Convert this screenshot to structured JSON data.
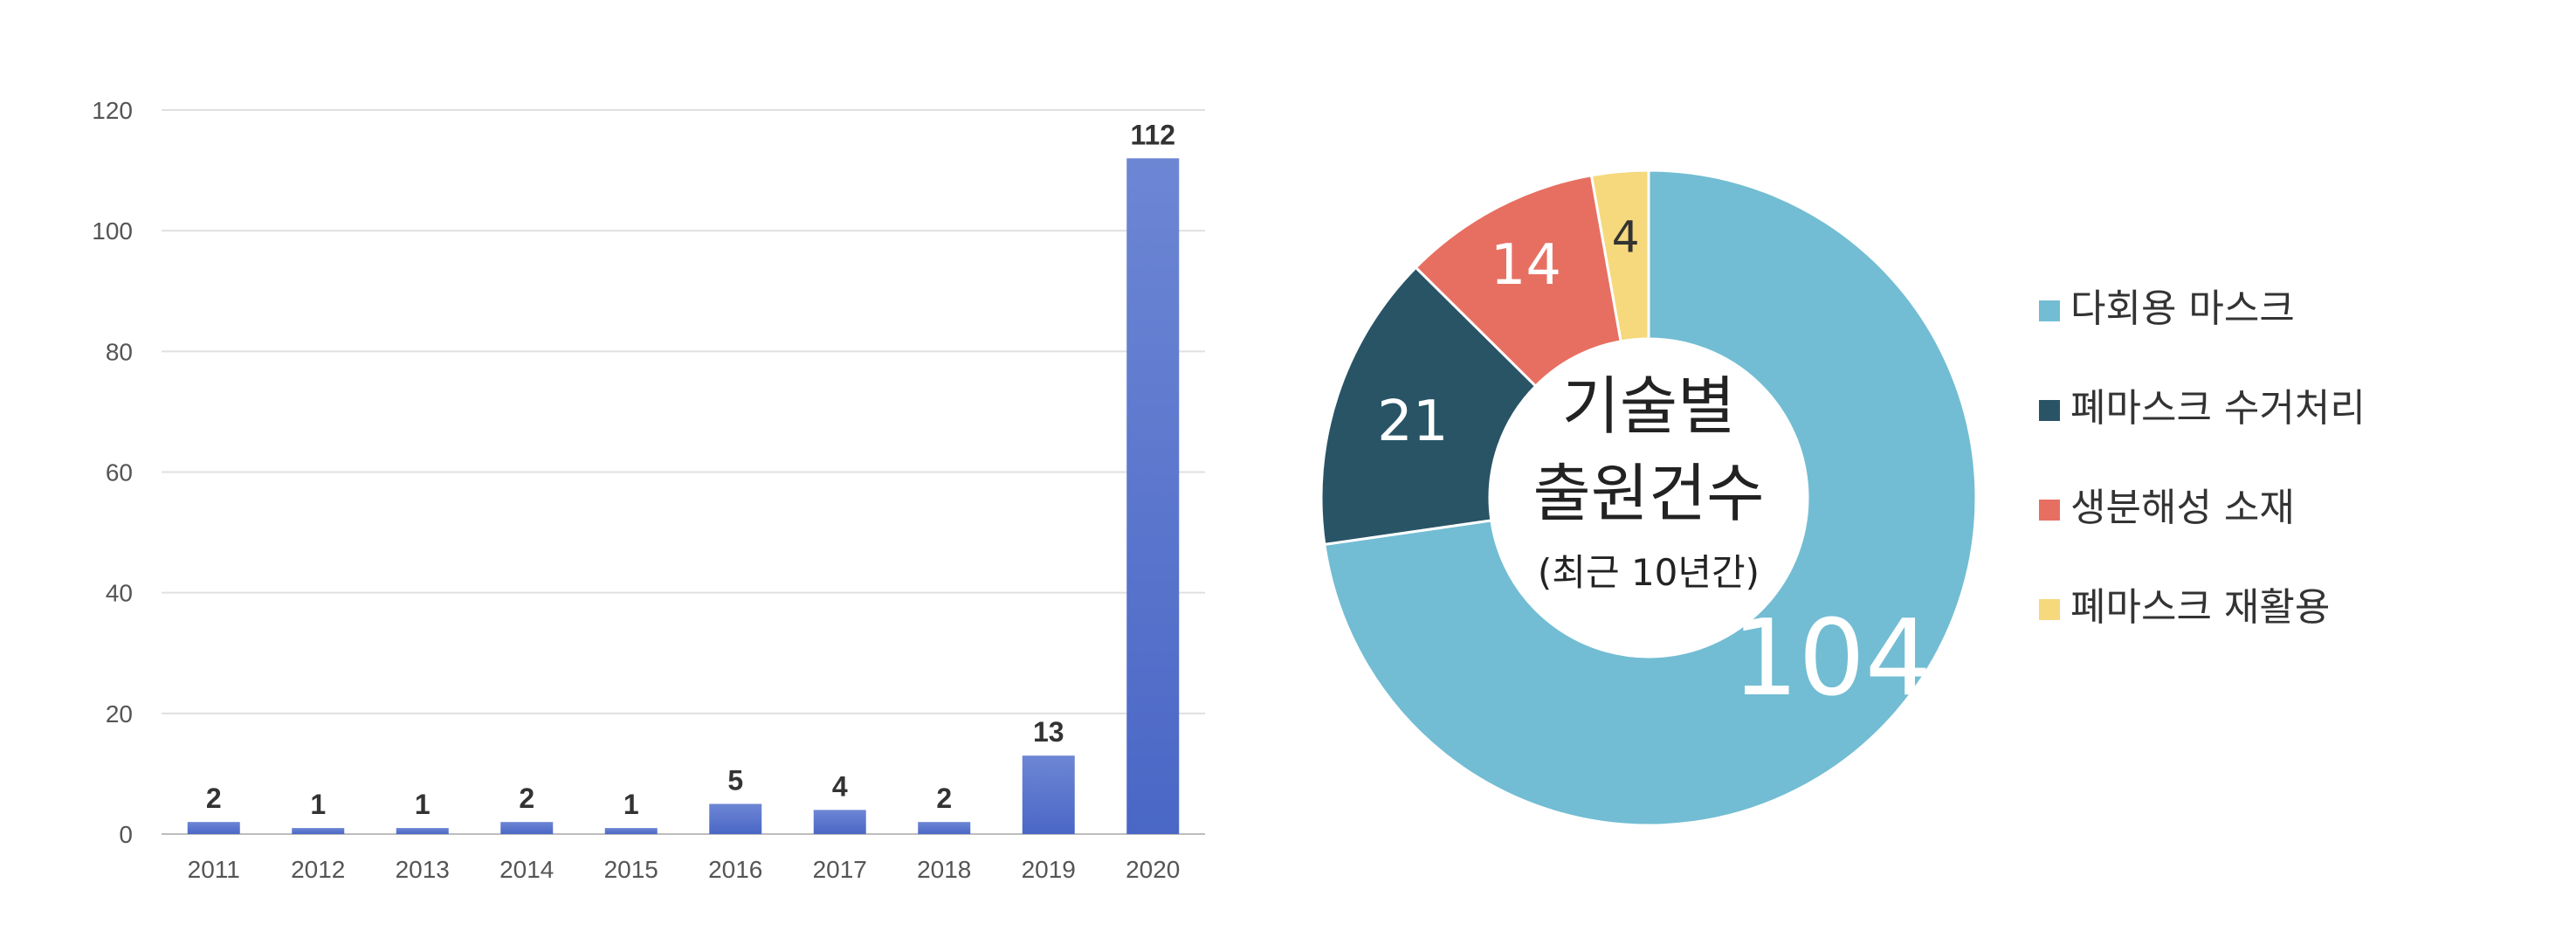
{
  "chart_data": [
    {
      "type": "bar",
      "categories": [
        "2011",
        "2012",
        "2013",
        "2014",
        "2015",
        "2016",
        "2017",
        "2018",
        "2019",
        "2020"
      ],
      "values": [
        2,
        1,
        1,
        2,
        1,
        5,
        4,
        2,
        13,
        112
      ],
      "yticks": [
        0,
        20,
        40,
        60,
        80,
        100,
        120
      ],
      "ylim": [
        0,
        120
      ],
      "grid": true,
      "bar_color": "#4a67c6",
      "bar_color_top": "#6d86d4"
    },
    {
      "type": "pie",
      "donut": true,
      "labels": [
        "다회용 마스크",
        "폐마스크 수거처리",
        "생분해성 소재",
        "폐마스크 재활용"
      ],
      "values": [
        104,
        21,
        14,
        4
      ],
      "colors": [
        "#72bdd3",
        "#285466",
        "#e76f62",
        "#f6d97c"
      ],
      "center_title": [
        "기술별",
        "출원건수"
      ],
      "center_subtitle": "(최근 10년간)",
      "legend_position": "right"
    }
  ]
}
